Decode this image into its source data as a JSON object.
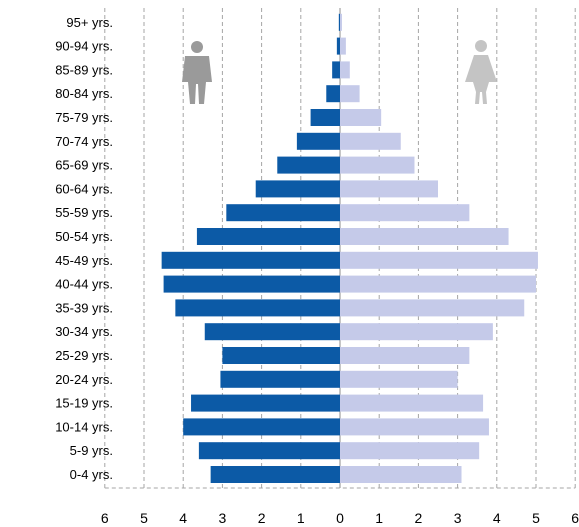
{
  "chart_data": {
    "type": "bar",
    "orientation": "horizontal",
    "layout": "population-pyramid",
    "categories": [
      "0-4 yrs.",
      "5-9 yrs.",
      "10-14 yrs.",
      "15-19 yrs.",
      "20-24 yrs.",
      "25-29 yrs.",
      "30-34 yrs.",
      "35-39 yrs.",
      "40-44 yrs.",
      "45-49 yrs.",
      "50-54 yrs.",
      "55-59 yrs.",
      "60-64 yrs.",
      "65-69 yrs.",
      "70-74 yrs.",
      "75-79 yrs.",
      "80-84 yrs.",
      "85-89 yrs.",
      "90-94 yrs.",
      "95+ yrs."
    ],
    "series": [
      {
        "side": "left",
        "color": "#0c5aa6",
        "values": [
          3.3,
          3.6,
          4.0,
          3.8,
          3.05,
          3.0,
          3.45,
          4.2,
          4.5,
          4.55,
          3.65,
          2.9,
          2.15,
          1.6,
          1.1,
          0.75,
          0.35,
          0.2,
          0.08,
          0.03
        ]
      },
      {
        "side": "right",
        "color": "#c5cae9",
        "values": [
          3.1,
          3.55,
          3.8,
          3.65,
          3.0,
          3.3,
          3.9,
          4.7,
          5.0,
          5.05,
          4.3,
          3.3,
          2.5,
          1.9,
          1.55,
          1.05,
          0.5,
          0.25,
          0.15,
          0.05
        ]
      }
    ],
    "x_ticks": [
      "6",
      "5",
      "4",
      "3",
      "2",
      "1",
      "0",
      "1",
      "2",
      "3",
      "4",
      "5",
      "6"
    ],
    "xlim": [
      -6,
      6
    ],
    "grid": true,
    "legend": "none",
    "icons": [
      "male-figure-icon",
      "female-figure-icon"
    ]
  }
}
